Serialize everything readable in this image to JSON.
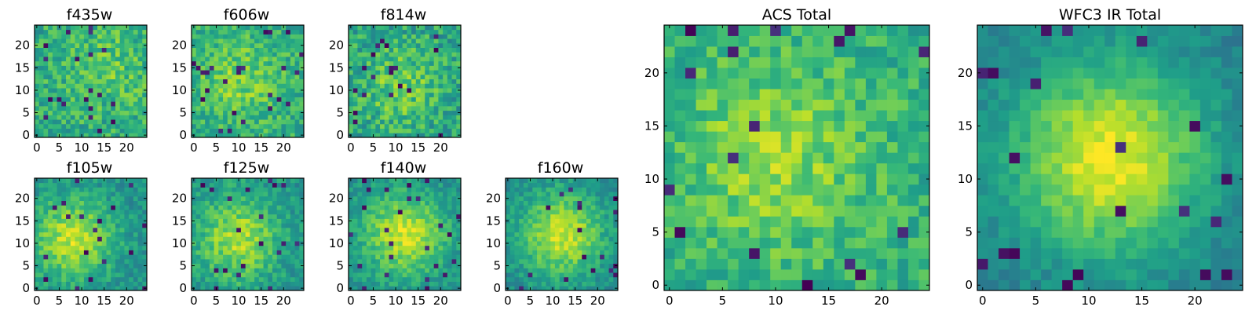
{
  "figure": {
    "colormap": "viridis",
    "gridsize": 25
  },
  "chart_data": [
    {
      "type": "heatmap",
      "title": "f435w",
      "xlim": [
        -0.5,
        24.5
      ],
      "ylim": [
        -0.5,
        24.5
      ],
      "xticks": [
        0,
        5,
        10,
        15,
        20
      ],
      "yticks": [
        0,
        5,
        10,
        15,
        20
      ],
      "peak": [
        16,
        15
      ],
      "base": 0.62,
      "amp": 0.12,
      "noise": 0.32,
      "seed": 11
    },
    {
      "type": "heatmap",
      "title": "f606w",
      "xlim": [
        -0.5,
        24.5
      ],
      "ylim": [
        -0.5,
        24.5
      ],
      "xticks": [
        0,
        5,
        10,
        15,
        20
      ],
      "yticks": [
        0,
        5,
        10,
        15,
        20
      ],
      "peak": [
        10,
        12
      ],
      "base": 0.62,
      "amp": 0.18,
      "noise": 0.3,
      "seed": 23
    },
    {
      "type": "heatmap",
      "title": "f814w",
      "xlim": [
        -0.5,
        24.5
      ],
      "ylim": [
        -0.5,
        24.5
      ],
      "xticks": [
        0,
        5,
        10,
        15,
        20
      ],
      "yticks": [
        0,
        5,
        10,
        15,
        20
      ],
      "peak": [
        11,
        11
      ],
      "base": 0.58,
      "amp": 0.18,
      "noise": 0.34,
      "seed": 37
    },
    {
      "type": "heatmap",
      "title": "f105w",
      "xlim": [
        -0.5,
        24.5
      ],
      "ylim": [
        -0.5,
        24.5
      ],
      "xticks": [
        0,
        5,
        10,
        15,
        20
      ],
      "yticks": [
        0,
        5,
        10,
        15,
        20
      ],
      "peak": [
        8,
        11
      ],
      "base": 0.5,
      "amp": 0.4,
      "noise": 0.22,
      "seed": 41
    },
    {
      "type": "heatmap",
      "title": "f125w",
      "xlim": [
        -0.5,
        24.5
      ],
      "ylim": [
        -0.5,
        24.5
      ],
      "xticks": [
        0,
        5,
        10,
        15,
        20
      ],
      "yticks": [
        0,
        5,
        10,
        15,
        20
      ],
      "peak": [
        10,
        11
      ],
      "base": 0.52,
      "amp": 0.35,
      "noise": 0.24,
      "seed": 53
    },
    {
      "type": "heatmap",
      "title": "f140w",
      "xlim": [
        -0.5,
        24.5
      ],
      "ylim": [
        -0.5,
        24.5
      ],
      "xticks": [
        0,
        5,
        10,
        15,
        20
      ],
      "yticks": [
        0,
        5,
        10,
        15,
        20
      ],
      "peak": [
        12,
        12
      ],
      "base": 0.5,
      "amp": 0.42,
      "noise": 0.2,
      "seed": 67
    },
    {
      "type": "heatmap",
      "title": "f160w",
      "xlim": [
        -0.5,
        24.5
      ],
      "ylim": [
        -0.5,
        24.5
      ],
      "xticks": [
        0,
        5,
        10,
        15,
        20
      ],
      "yticks": [
        0,
        5,
        10,
        15,
        20
      ],
      "peak": [
        12,
        12
      ],
      "base": 0.48,
      "amp": 0.44,
      "noise": 0.2,
      "seed": 79
    },
    {
      "type": "heatmap",
      "title": "ACS Total",
      "xlim": [
        -0.5,
        24.5
      ],
      "ylim": [
        -0.5,
        24.5
      ],
      "xticks": [
        0,
        5,
        10,
        15,
        20
      ],
      "yticks": [
        0,
        5,
        10,
        15,
        20
      ],
      "peak": [
        10,
        12
      ],
      "base": 0.62,
      "amp": 0.22,
      "noise": 0.26,
      "seed": 97
    },
    {
      "type": "heatmap",
      "title": "WFC3 IR Total",
      "xlim": [
        -0.5,
        24.5
      ],
      "ylim": [
        -0.5,
        24.5
      ],
      "xticks": [
        0,
        5,
        10,
        15,
        20
      ],
      "yticks": [
        0,
        5,
        10,
        15,
        20
      ],
      "peak": [
        12,
        12
      ],
      "base": 0.42,
      "amp": 0.55,
      "noise": 0.14,
      "seed": 113
    }
  ]
}
